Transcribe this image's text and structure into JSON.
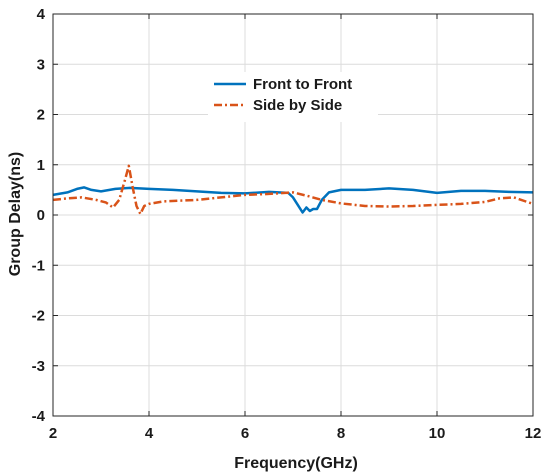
{
  "chart_data": {
    "type": "line",
    "title": "",
    "xlabel": "Frequency(GHz)",
    "ylabel": "Group Delay(ns)",
    "xlim": [
      2,
      12
    ],
    "ylim": [
      -4,
      4
    ],
    "xticks": [
      2,
      4,
      6,
      8,
      10,
      12
    ],
    "yticks": [
      -4,
      -3,
      -2,
      -1,
      0,
      1,
      2,
      3,
      4
    ],
    "grid": true,
    "legend_position": "top-center",
    "series": [
      {
        "name": "Front to Front",
        "color": "#0072BD",
        "style": "solid",
        "x": [
          2.0,
          2.3,
          2.5,
          2.65,
          2.8,
          3.0,
          3.3,
          3.6,
          4.0,
          4.5,
          5.0,
          5.5,
          6.0,
          6.5,
          6.9,
          7.0,
          7.1,
          7.2,
          7.28,
          7.35,
          7.42,
          7.5,
          7.6,
          7.75,
          8.0,
          8.5,
          9.0,
          9.5,
          10.0,
          10.5,
          11.0,
          11.5,
          12.0
        ],
        "y": [
          0.4,
          0.45,
          0.52,
          0.55,
          0.5,
          0.47,
          0.52,
          0.54,
          0.52,
          0.5,
          0.47,
          0.44,
          0.43,
          0.46,
          0.44,
          0.35,
          0.2,
          0.05,
          0.15,
          0.08,
          0.12,
          0.12,
          0.3,
          0.45,
          0.5,
          0.5,
          0.53,
          0.5,
          0.44,
          0.48,
          0.48,
          0.46,
          0.45
        ]
      },
      {
        "name": "Side by Side",
        "color": "#D95319",
        "style": "dashdot",
        "x": [
          2.0,
          2.3,
          2.6,
          2.9,
          3.1,
          3.25,
          3.38,
          3.5,
          3.58,
          3.66,
          3.74,
          3.82,
          3.9,
          4.0,
          4.3,
          5.0,
          5.5,
          6.0,
          6.5,
          7.0,
          7.3,
          7.6,
          8.0,
          8.5,
          9.0,
          9.5,
          10.0,
          10.5,
          11.0,
          11.3,
          11.6,
          12.0
        ],
        "y": [
          0.3,
          0.33,
          0.35,
          0.3,
          0.25,
          0.15,
          0.3,
          0.7,
          0.98,
          0.55,
          0.18,
          0.02,
          0.18,
          0.22,
          0.27,
          0.3,
          0.35,
          0.4,
          0.42,
          0.45,
          0.38,
          0.3,
          0.23,
          0.18,
          0.17,
          0.18,
          0.2,
          0.22,
          0.26,
          0.33,
          0.35,
          0.22
        ]
      }
    ]
  }
}
